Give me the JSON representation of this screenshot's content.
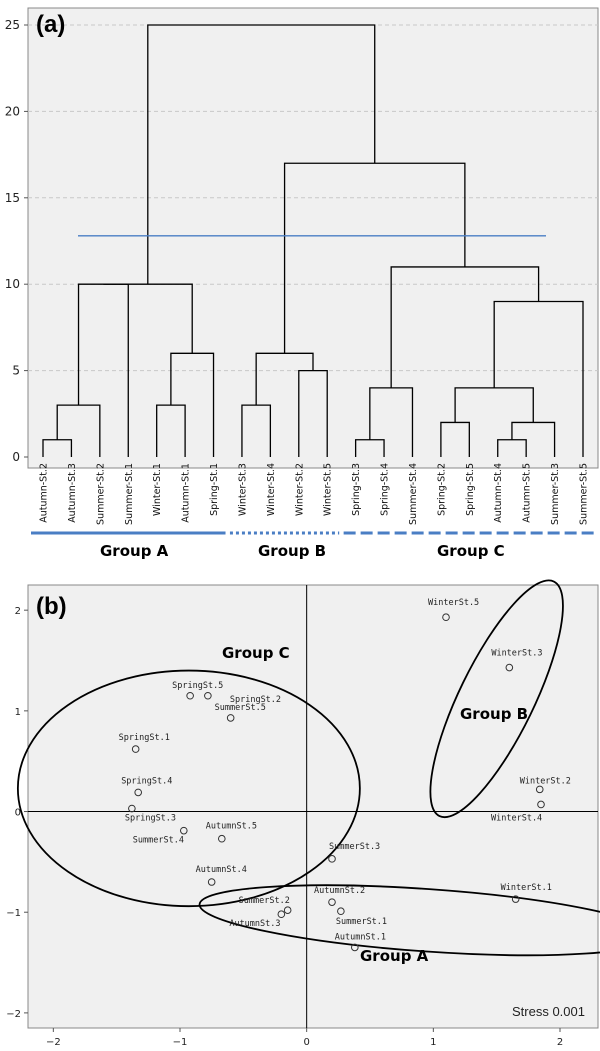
{
  "chart_data": [
    {
      "panel": "(a)",
      "type": "dendrogram",
      "y_ticks": [
        0,
        5,
        10,
        15,
        20,
        25
      ],
      "ylim": [
        0,
        25
      ],
      "grid": "dashed horizontal",
      "cut_height": 12.8,
      "leaves": [
        "Autumn-St.2",
        "Autumn-St.3",
        "Summer-St.2",
        "Summer-St.1",
        "Winter-St.1",
        "Autumn-St.1",
        "Spring-St.1",
        "Winter-St.3",
        "Winter-St.4",
        "Winter-St.2",
        "Winter-St.5",
        "Spring-St.3",
        "Spring-St.4",
        "Summer-St.4",
        "Spring-St.2",
        "Spring-St.5",
        "Autumn-St.4",
        "Autumn-St.5",
        "Summer-St.3",
        "Summer-St.5"
      ],
      "merges": [
        {
          "left": 0,
          "right": 1,
          "height": 1
        },
        {
          "left": 20,
          "right": 2,
          "height": 3
        },
        {
          "left": 21,
          "right": 3,
          "height": 10
        },
        {
          "left": 4,
          "right": 5,
          "height": 3
        },
        {
          "left": 23,
          "right": 6,
          "height": 6
        },
        {
          "left": 22,
          "right": 24,
          "height": 10
        },
        {
          "left": 7,
          "right": 8,
          "height": 3
        },
        {
          "left": 9,
          "right": 10,
          "height": 5
        },
        {
          "left": 26,
          "right": 27,
          "height": 6
        },
        {
          "left": 11,
          "right": 12,
          "height": 1
        },
        {
          "left": 29,
          "right": 13,
          "height": 4
        },
        {
          "left": 14,
          "right": 15,
          "height": 2
        },
        {
          "left": 16,
          "right": 17,
          "height": 1
        },
        {
          "left": 32,
          "right": 18,
          "height": 2
        },
        {
          "left": 31,
          "right": 33,
          "height": 4
        },
        {
          "left": 34,
          "right": 19,
          "height": 9
        },
        {
          "left": 30,
          "right": 35,
          "height": 11
        },
        {
          "left": 28,
          "right": 36,
          "height": 17
        },
        {
          "left": 25,
          "right": 37,
          "height": 25
        }
      ],
      "groups": [
        {
          "name": "Group A",
          "from": 0,
          "to": 6,
          "style": "solid"
        },
        {
          "name": "Group B",
          "from": 7,
          "to": 10,
          "style": "dotted"
        },
        {
          "name": "Group C",
          "from": 11,
          "to": 19,
          "style": "dashed"
        }
      ],
      "colors": {
        "branch": "#000000",
        "cut_line": "#4a7ec4",
        "group_bar": "#4a7ec4",
        "panel_bg": "#f0f0f0",
        "grid": "#c8c8c8"
      }
    },
    {
      "panel": "(b)",
      "type": "scatter",
      "xlim": [
        -2.2,
        2.3
      ],
      "ylim": [
        -2.15,
        2.25
      ],
      "x_ticks": [
        -2,
        -1,
        0,
        1,
        2
      ],
      "y_ticks": [
        -2,
        -1,
        0,
        1,
        2
      ],
      "stress_label": "Stress 0.001",
      "points": [
        {
          "label": "WinterSt.5",
          "x": 1.1,
          "y": 1.93
        },
        {
          "label": "WinterSt.3",
          "x": 1.6,
          "y": 1.43
        },
        {
          "label": "WinterSt.2",
          "x": 1.84,
          "y": 0.22
        },
        {
          "label": "WinterSt.4",
          "x": 1.85,
          "y": 0.07
        },
        {
          "label": "WinterSt.1",
          "x": 1.65,
          "y": -0.87
        },
        {
          "label": "SpringSt.5",
          "x": -0.92,
          "y": 1.15
        },
        {
          "label": "SpringSt.2",
          "x": -0.78,
          "y": 1.15
        },
        {
          "label": "SummerSt.5",
          "x": -0.6,
          "y": 0.93
        },
        {
          "label": "SpringSt.1",
          "x": -1.35,
          "y": 0.62
        },
        {
          "label": "SpringSt.4",
          "x": -1.33,
          "y": 0.19
        },
        {
          "label": "SpringSt.3",
          "x": -1.38,
          "y": 0.03
        },
        {
          "label": "SummerSt.4",
          "x": -0.97,
          "y": -0.19
        },
        {
          "label": "AutumnSt.5",
          "x": -0.67,
          "y": -0.27
        },
        {
          "label": "AutumnSt.4",
          "x": -0.75,
          "y": -0.7
        },
        {
          "label": "SummerSt.3",
          "x": 0.2,
          "y": -0.47
        },
        {
          "label": "AutumnSt.2",
          "x": 0.2,
          "y": -0.9
        },
        {
          "label": "SummerSt.1",
          "x": 0.27,
          "y": -0.99
        },
        {
          "label": "AutumnSt.1",
          "x": 0.38,
          "y": -1.35
        },
        {
          "label": "SummerSt.2",
          "x": -0.15,
          "y": -0.98
        },
        {
          "label": "AutumnSt.3",
          "x": -0.2,
          "y": -1.02
        }
      ],
      "groups": [
        {
          "name": "Group A",
          "cx": 0.95,
          "cy": -1.08,
          "rx": 1.8,
          "ry": 0.31,
          "angle": 4
        },
        {
          "name": "Group B",
          "cx": 1.5,
          "cy": 1.12,
          "rx": 1.03,
          "ry": 0.37,
          "angle": -64
        },
        {
          "name": "Group C",
          "cx": -0.93,
          "cy": 0.23,
          "rx": 1.35,
          "ry": 1.17,
          "angle": 0
        }
      ],
      "colors": {
        "marker": "#333333",
        "ellipse": "#000000",
        "panel_bg": "#f0f0f0"
      }
    }
  ],
  "labels": {
    "panel_a": "(a)",
    "panel_b": "(b)",
    "group_a": "Group A",
    "group_b": "Group B",
    "group_c": "Group C",
    "stress": "Stress 0.001"
  }
}
